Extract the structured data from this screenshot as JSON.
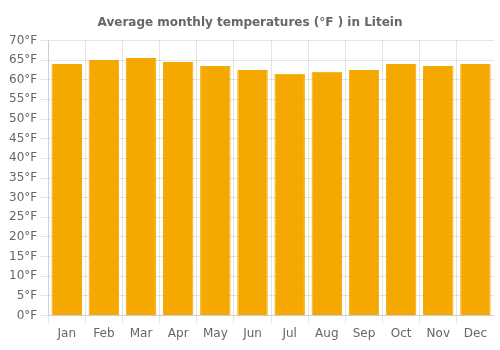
{
  "chart_data": {
    "type": "bar",
    "title": "Average monthly temperatures (°F ) in Litein",
    "categories": [
      "Jan",
      "Feb",
      "Mar",
      "Apr",
      "May",
      "Jun",
      "Jul",
      "Aug",
      "Sep",
      "Oct",
      "Nov",
      "Dec"
    ],
    "values": [
      64.0,
      65.0,
      65.5,
      64.5,
      63.5,
      62.5,
      61.5,
      62.0,
      62.5,
      64.0,
      63.5,
      64.0
    ],
    "color": "#F5A800",
    "ylim": [
      0,
      70
    ],
    "yticks": [
      {
        "value": 0,
        "label": "0°F"
      },
      {
        "value": 5,
        "label": "5°F"
      },
      {
        "value": 10,
        "label": "10°F"
      },
      {
        "value": 15,
        "label": "15°F"
      },
      {
        "value": 20,
        "label": "20°F"
      },
      {
        "value": 25,
        "label": "25°F"
      },
      {
        "value": 30,
        "label": "30°F"
      },
      {
        "value": 35,
        "label": "35°F"
      },
      {
        "value": 40,
        "label": "40°F"
      },
      {
        "value": 45,
        "label": "45°F"
      },
      {
        "value": 50,
        "label": "50°F"
      },
      {
        "value": 55,
        "label": "55°F"
      },
      {
        "value": 60,
        "label": "60°F"
      },
      {
        "value": 65,
        "label": "65°F"
      },
      {
        "value": 70,
        "label": "70°F"
      }
    ],
    "grid": true
  }
}
